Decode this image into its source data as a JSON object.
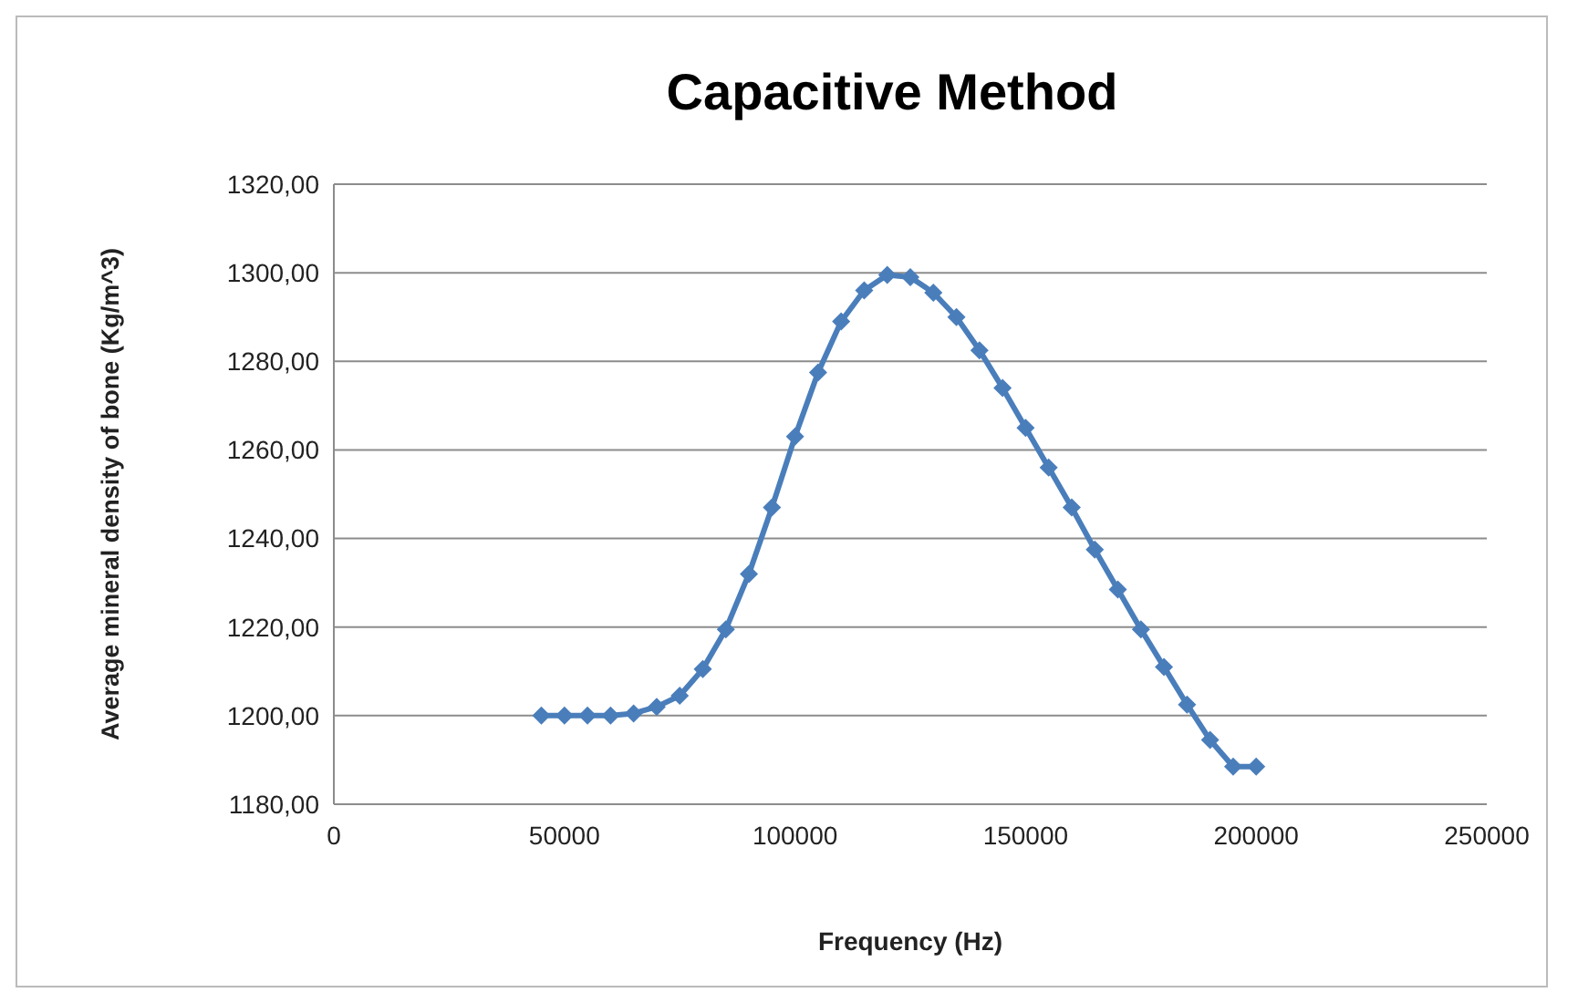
{
  "chart_data": {
    "type": "line",
    "title": "Capacitive Method",
    "xlabel": "Frequency (Hz)",
    "ylabel": "Average mineral density of bone (Kg/m^3)",
    "x": [
      45000,
      50000,
      55000,
      60000,
      65000,
      70000,
      75000,
      80000,
      85000,
      90000,
      95000,
      100000,
      105000,
      110000,
      115000,
      120000,
      125000,
      130000,
      135000,
      140000,
      145000,
      150000,
      155000,
      160000,
      165000,
      170000,
      175000,
      180000,
      185000,
      190000,
      195000,
      200000
    ],
    "series": [
      {
        "color": "#4a7ebb",
        "values": [
          1200,
          1200,
          1200,
          1200,
          1200.5,
          1202,
          1204.5,
          1210.5,
          1219.5,
          1232,
          1247,
          1263,
          1277.5,
          1289,
          1296,
          1299.5,
          1299,
          1295.5,
          1290,
          1282.5,
          1274,
          1265,
          1256,
          1247,
          1237.5,
          1228.5,
          1219.5,
          1211,
          1202.5,
          1194.5,
          1188.5,
          1188.5
        ]
      }
    ],
    "xlim": [
      0,
      250000
    ],
    "xticks": [
      0,
      50000,
      100000,
      150000,
      200000,
      250000
    ],
    "ylim": [
      1180,
      1320
    ],
    "yticks": [
      {
        "value": 1180,
        "label": "1180,00"
      },
      {
        "value": 1200,
        "label": "1200,00"
      },
      {
        "value": 1220,
        "label": "1220,00"
      },
      {
        "value": 1240,
        "label": "1240,00"
      },
      {
        "value": 1260,
        "label": "1260,00"
      },
      {
        "value": 1280,
        "label": "1280,00"
      },
      {
        "value": 1300,
        "label": "1300,00"
      },
      {
        "value": 1320,
        "label": "1320,00"
      }
    ],
    "grid": "y",
    "marker": "diamond",
    "line_style": "solid"
  }
}
